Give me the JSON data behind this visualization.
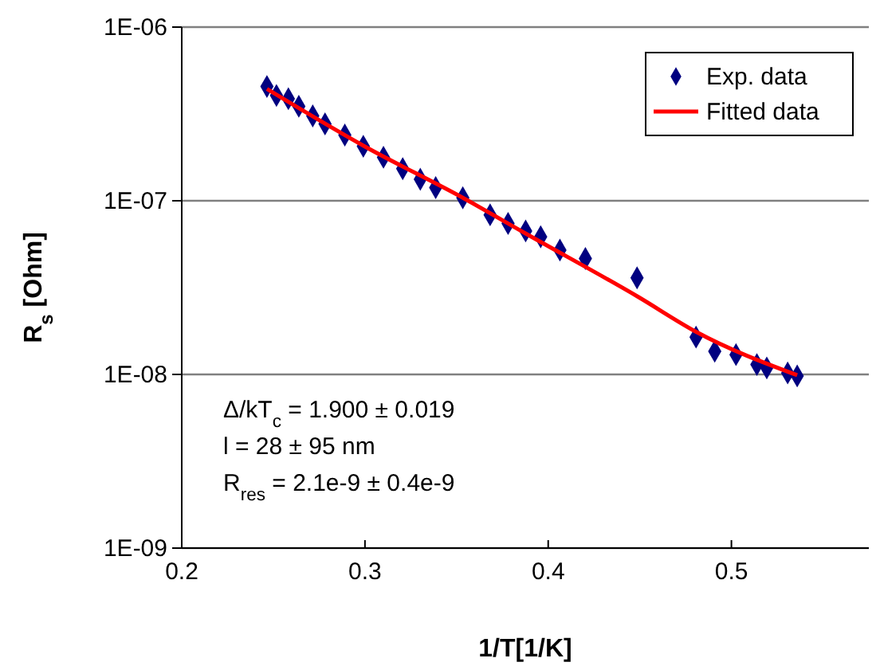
{
  "chart_data": {
    "type": "scatter",
    "xlabel": "1/T[1/K]",
    "ylabel": "R$_{s}$ [Ohm]",
    "xlim": [
      0.2,
      0.575
    ],
    "xticks": [
      0.2,
      0.3,
      0.4,
      0.5
    ],
    "ylim": [
      1e-09,
      1e-06
    ],
    "yticks": [
      {
        "value": 1e-09,
        "label": "1E-09"
      },
      {
        "value": 1e-08,
        "label": "1E-08"
      },
      {
        "value": 1e-07,
        "label": "1E-07"
      },
      {
        "value": 1e-06,
        "label": "1E-06"
      }
    ],
    "log": "y",
    "grid": "y",
    "legend": "top right",
    "series": [
      {
        "name": "Exp. data",
        "marker": "diamond",
        "color": "#000080",
        "x": [
          0.2465,
          0.2517,
          0.2582,
          0.2639,
          0.2715,
          0.2782,
          0.289,
          0.2991,
          0.3101,
          0.3206,
          0.3302,
          0.3386,
          0.3534,
          0.3683,
          0.3781,
          0.3877,
          0.3959,
          0.4064,
          0.4203,
          0.4485,
          0.4807,
          0.4909,
          0.5025,
          0.5139,
          0.5193,
          0.5307,
          0.5359
        ],
        "values": [
          4.55e-07,
          4.04e-07,
          3.87e-07,
          3.5e-07,
          3.08e-07,
          2.77e-07,
          2.39e-07,
          2.06e-07,
          1.78e-07,
          1.53e-07,
          1.33e-07,
          1.19e-07,
          1.04e-07,
          8.3e-08,
          7.4e-08,
          6.7e-08,
          6.2e-08,
          5.2e-08,
          4.65e-08,
          3.6e-08,
          1.64e-08,
          1.36e-08,
          1.3e-08,
          1.14e-08,
          1.09e-08,
          1.02e-08,
          9.8e-09
        ]
      },
      {
        "name": "Fitted data",
        "type": "line",
        "marker": "none",
        "line_style": "solid",
        "color": "#ff0000",
        "x": [
          0.2465,
          0.3,
          0.3534,
          0.388,
          0.449,
          0.4807,
          0.5359
        ],
        "values": [
          4.4e-07,
          2.05e-07,
          1.04e-07,
          6.45e-08,
          2.8e-08,
          1.76e-08,
          9.9e-09
        ]
      }
    ],
    "annotations": [
      "Δ/kT$_{c}$ = 1.900 ± 0.019",
      "l = 28 ± 95 nm",
      "R$_{res}$ = 2.1e-9 ± 0.4e-9"
    ]
  }
}
